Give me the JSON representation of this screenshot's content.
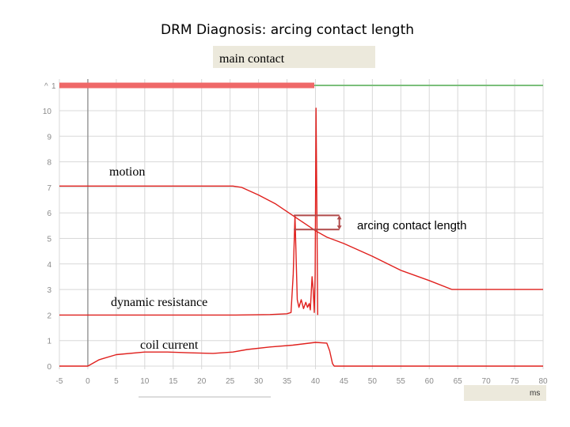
{
  "page": {
    "title": "DRM Diagnosis: arcing contact length",
    "main_contact_label": "main contact",
    "channel_marker": "1",
    "x_unit": "ms"
  },
  "colors": {
    "trace": "#e0201d",
    "contact_closed": "#ef6868",
    "contact_open": "#7bbf7b",
    "arcing_marker": "#b04a4a",
    "grid": "#d8d8d8",
    "label_box": "#ece9dc"
  },
  "chart_data": {
    "type": "line",
    "xlim": [
      -5,
      80
    ],
    "ylim": [
      0,
      10
    ],
    "x_ticks": [
      -5,
      0,
      5,
      10,
      15,
      20,
      25,
      30,
      35,
      40,
      45,
      50,
      55,
      60,
      65,
      70,
      75,
      80
    ],
    "x_tick_labels": [
      "-5",
      "0",
      "5",
      "10",
      "15",
      "20",
      "25",
      "30",
      "35",
      "40",
      "45",
      "50",
      "55",
      "60",
      "65",
      "70",
      "75",
      "80"
    ],
    "y_ticks": [
      0,
      1,
      2,
      3,
      4,
      5,
      6,
      7,
      8,
      9,
      10
    ],
    "y_tick_labels": [
      "0",
      "1",
      "2",
      "3",
      "4",
      "5",
      "6",
      "7",
      "8",
      "9",
      "10"
    ],
    "grid": true,
    "main_contact": {
      "closed_until_x": 39.8,
      "xlim": [
        -5,
        80
      ]
    },
    "series": [
      {
        "name": "motion",
        "x": [
          -5,
          25.5,
          27,
          30,
          33,
          36,
          38,
          40,
          42,
          45,
          50,
          55,
          60,
          64,
          80
        ],
        "y": [
          7.05,
          7.05,
          7.0,
          6.7,
          6.35,
          5.9,
          5.6,
          5.3,
          5.05,
          4.8,
          4.3,
          3.75,
          3.35,
          3.0,
          3.0
        ]
      },
      {
        "name": "dynamic resistance",
        "x": [
          -5,
          26,
          32,
          35,
          35.7,
          36.1,
          36.4,
          36.8,
          37.1,
          37.5,
          37.9,
          38.3,
          38.6,
          38.9,
          39.1,
          39.4,
          39.6,
          39.8,
          39.95,
          40.1,
          40.25,
          40.4
        ],
        "y": [
          2.0,
          2.0,
          2.02,
          2.05,
          2.1,
          3.6,
          5.9,
          2.6,
          2.3,
          2.6,
          2.25,
          2.5,
          2.3,
          2.45,
          2.2,
          3.5,
          3.0,
          2.1,
          3.6,
          10.1,
          6.0,
          2.0
        ]
      },
      {
        "name": "coil current",
        "x": [
          -5,
          0,
          2,
          5,
          10,
          14,
          18,
          22,
          25.5,
          28,
          32,
          36,
          40,
          42,
          42.5,
          43,
          43.3,
          80
        ],
        "y": [
          0.0,
          0.0,
          0.25,
          0.45,
          0.55,
          0.55,
          0.52,
          0.5,
          0.55,
          0.65,
          0.75,
          0.82,
          0.93,
          0.9,
          0.6,
          0.1,
          0.0,
          0.0
        ]
      }
    ],
    "annotations": {
      "motion": "motion",
      "dynamic_resistance": "dynamic resistance",
      "coil_current": "coil current",
      "arcing_contact_length": "arcing contact length"
    },
    "arcing_contact": {
      "x_start": 36.2,
      "x_end": 44.2,
      "y_top": 5.9,
      "y_bottom": 5.35
    }
  }
}
